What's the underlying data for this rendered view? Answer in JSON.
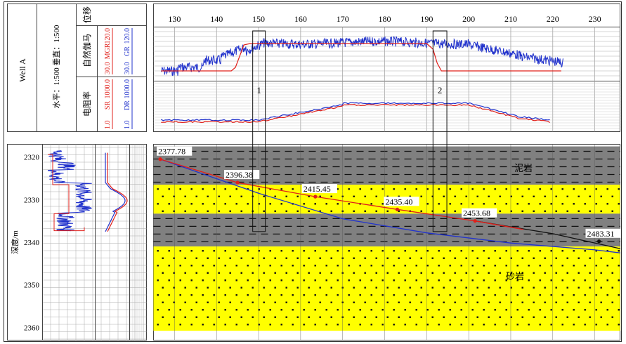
{
  "header": {
    "well": "Well A",
    "scale": "水平：1:500   垂直：1:500",
    "col_displacement": "位移",
    "col_gamma": "自然伽马",
    "col_resistivity": "电阻率"
  },
  "scales": {
    "mgr": {
      "name": "MGR",
      "min": "30.0",
      "max": "120.0",
      "color": "#e0201b"
    },
    "gr": {
      "name": "GR",
      "min": "30.0",
      "max": "120.0",
      "color": "#2233cc"
    },
    "sr": {
      "name": "SR",
      "min": "1.0",
      "max": "1000.0",
      "color": "#e0201b"
    },
    "dr": {
      "name": "DR",
      "min": "1.0",
      "max": "1000.0",
      "color": "#2233cc"
    }
  },
  "labels": {
    "mudstone": "泥岩",
    "sandstone": "砂岩",
    "depth_axis": "深度/m",
    "box1": "1",
    "box2": "2"
  },
  "colors": {
    "mudstone": "#808080",
    "sandstone": "#ffff00",
    "red_curve": "#e0201b",
    "blue_curve": "#2233cc"
  },
  "chart_data": {
    "type": "well-log-section",
    "displacement_ticks": [
      130,
      140,
      150,
      160,
      170,
      180,
      190,
      200,
      210,
      220,
      230
    ],
    "depth_ticks": [
      2320,
      2330,
      2340,
      2350,
      2360
    ],
    "depth_range": [
      2317,
      2363
    ],
    "displacement_range": [
      125,
      236
    ],
    "layers": [
      {
        "name": "泥岩",
        "top": 2317.5,
        "bottom": 2326.5
      },
      {
        "name": "砂岩",
        "top": 2326.5,
        "bottom": 2333.3
      },
      {
        "name": "泥岩",
        "top": 2333.3,
        "bottom": 2341.0
      },
      {
        "name": "砂岩",
        "top": 2341.0,
        "bottom": 2360.8
      }
    ],
    "trajectory_points": [
      {
        "label": "2377.78",
        "x": 126.6,
        "depth": 2320.5
      },
      {
        "label": "2396.38",
        "x": 145.0,
        "depth": 2326.0
      },
      {
        "label": "2415.45",
        "x": 163.5,
        "depth": 2329.3
      },
      {
        "label": "2435.40",
        "x": 183.0,
        "depth": 2332.3
      },
      {
        "label": "2453.68",
        "x": 201.5,
        "depth": 2335.0
      },
      {
        "label": "2483.31",
        "x": 231.0,
        "depth": 2339.8
      }
    ],
    "blue_path": [
      [
        126.6,
        2320.5
      ],
      [
        150,
        2328.5
      ],
      [
        170,
        2334.5
      ],
      [
        190,
        2337.8
      ],
      [
        210,
        2340.2
      ],
      [
        230,
        2341.8
      ],
      [
        236,
        2342.5
      ]
    ],
    "red_path": [
      [
        126.6,
        2320.5
      ],
      [
        145,
        2326.0
      ],
      [
        163.5,
        2329.3
      ],
      [
        183,
        2332.3
      ],
      [
        201.5,
        2335.0
      ],
      [
        213,
        2337.0
      ]
    ],
    "black_path": [
      [
        201.5,
        2335.0
      ],
      [
        220,
        2338.0
      ],
      [
        236,
        2341.5
      ]
    ],
    "boxes": [
      {
        "label": "1",
        "x_from": 148.6,
        "x_to": 151.6,
        "depth_bottom": 2337.5
      },
      {
        "label": "2",
        "x_from": 191.5,
        "x_to": 194.8,
        "depth_bottom": 2337.5
      }
    ]
  }
}
